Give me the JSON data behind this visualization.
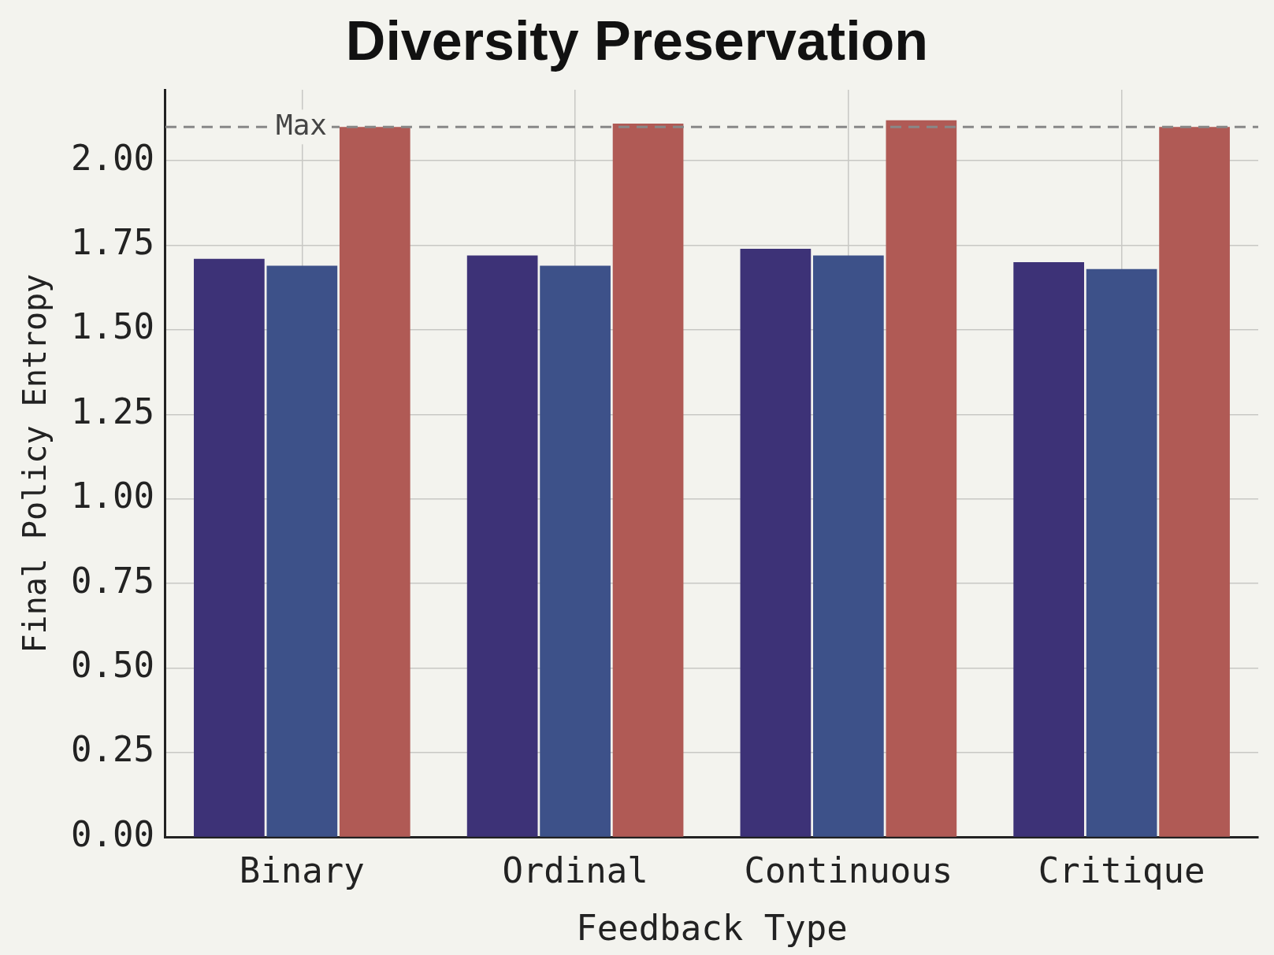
{
  "chart_data": {
    "type": "bar",
    "title": "Diversity Preservation",
    "xlabel": "Feedback Type",
    "ylabel": "Final Policy Entropy",
    "categories": [
      "Binary",
      "Ordinal",
      "Continuous",
      "Critique"
    ],
    "series": [
      {
        "color": "#3d3277",
        "values": [
          1.71,
          1.72,
          1.74,
          1.7
        ]
      },
      {
        "color": "#3d5189",
        "values": [
          1.69,
          1.69,
          1.72,
          1.68
        ]
      },
      {
        "color": "#b05a55",
        "values": [
          2.1,
          2.11,
          2.12,
          2.1
        ]
      }
    ],
    "ylim": [
      0,
      2.21
    ],
    "yticks": [
      {
        "value": 0,
        "label": "0.00"
      },
      {
        "value": 0.25,
        "label": "0.25"
      },
      {
        "value": 0.5,
        "label": "0.50"
      },
      {
        "value": 0.75,
        "label": "0.75"
      },
      {
        "value": 1,
        "label": "1.00"
      },
      {
        "value": 1.25,
        "label": "1.25"
      },
      {
        "value": 1.5,
        "label": "1.50"
      },
      {
        "value": 1.75,
        "label": "1.75"
      },
      {
        "value": 2,
        "label": "2.00"
      }
    ],
    "grid": true,
    "ref_lines": [
      {
        "axis": "y",
        "value": 2.1,
        "label": "Max",
        "color": "#888888",
        "line_style": "dashed"
      }
    ]
  }
}
